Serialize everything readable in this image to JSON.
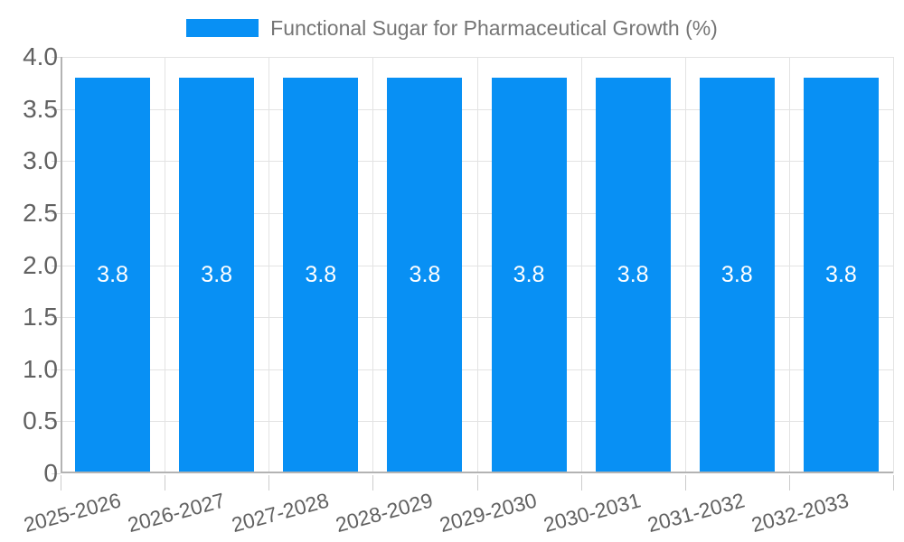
{
  "legend": {
    "label": "Functional Sugar for Pharmaceutical Growth (%)"
  },
  "chart_data": {
    "type": "bar",
    "title": "Functional Sugar for Pharmaceutical Growth (%)",
    "categories": [
      "2025-2026",
      "2026-2027",
      "2027-2028",
      "2028-2029",
      "2029-2030",
      "2030-2031",
      "2031-2032",
      "2032-2033"
    ],
    "series": [
      {
        "name": "Functional Sugar for Pharmaceutical Growth (%)",
        "values": [
          3.8,
          3.8,
          3.8,
          3.8,
          3.8,
          3.8,
          3.8,
          3.8
        ],
        "data_labels": [
          "3.8",
          "3.8",
          "3.8",
          "3.8",
          "3.8",
          "3.8",
          "3.8",
          "3.8"
        ]
      }
    ],
    "xlabel": "",
    "ylabel": "",
    "ylim": [
      0,
      4
    ],
    "ytick_labels": [
      "0",
      "0.5",
      "1.0",
      "1.5",
      "2.0",
      "2.5",
      "3.0",
      "3.5",
      "4.0"
    ],
    "grid": true,
    "legend_position": "top"
  },
  "colors": {
    "bar": "#0890f4",
    "grid": "#e3e3e3",
    "axis": "#b3b3b3",
    "tick": "#cccccc",
    "tick_text": "#616161",
    "legend_text": "#757575",
    "bar_label_text": "#ffffff"
  }
}
